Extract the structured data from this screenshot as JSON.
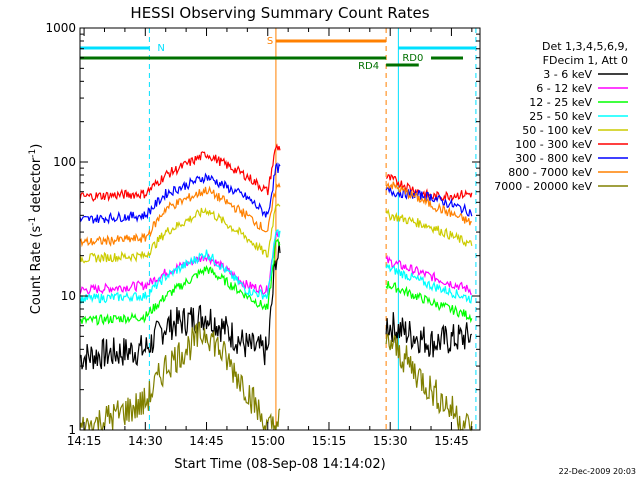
{
  "chart_data": {
    "type": "line",
    "title": "HESSI Observing Summary Count Rates",
    "xlabel": "Start Time (08-Sep-08 14:14:02)",
    "ylabel_prefix": "Count Rate (s",
    "ylabel_sup1": "-1",
    "ylabel_mid": " detector",
    "ylabel_sup2": "-1",
    "ylabel_suffix": ")",
    "yscale": "log",
    "xlim": [
      "14:14",
      "15:52"
    ],
    "ylim": [
      1,
      1000
    ],
    "x_ticks": [
      "14:15",
      "14:30",
      "14:45",
      "15:00",
      "15:15",
      "15:30",
      "15:45"
    ],
    "y_ticks": [
      {
        "value": 1,
        "label": "1"
      },
      {
        "value": 10,
        "label": "10"
      },
      {
        "value": 100,
        "label": "100"
      },
      {
        "value": 1000,
        "label": "1000"
      }
    ],
    "legend_header": [
      "Det 1,3,4,5,6,9,",
      "FDecim 1, Att 0"
    ],
    "legend_placement": "right",
    "series": [
      {
        "name": "3 - 6 keV",
        "color": "#000000",
        "points": [
          [
            "14:14",
            3.5
          ],
          [
            "14:30",
            4.0
          ],
          [
            "14:35",
            6
          ],
          [
            "14:45",
            7.2
          ],
          [
            "14:55",
            4.2
          ],
          [
            "15:00",
            3.8
          ],
          [
            "15:02",
            20
          ],
          [
            "15:30",
            6
          ],
          [
            "15:40",
            4.5
          ],
          [
            "15:50",
            5
          ]
        ]
      },
      {
        "name": "6 - 12 keV",
        "color": "#ff00ff",
        "points": [
          [
            "14:14",
            11
          ],
          [
            "14:30",
            12
          ],
          [
            "14:35",
            15
          ],
          [
            "14:45",
            20
          ],
          [
            "14:55",
            12
          ],
          [
            "15:00",
            11
          ],
          [
            "15:02",
            30
          ],
          [
            "15:30",
            18
          ],
          [
            "15:40",
            14
          ],
          [
            "15:50",
            11
          ]
        ]
      },
      {
        "name": "12 - 25 keV",
        "color": "#00ff00",
        "points": [
          [
            "14:14",
            6.5
          ],
          [
            "14:30",
            7
          ],
          [
            "14:35",
            10
          ],
          [
            "14:45",
            16
          ],
          [
            "14:55",
            10
          ],
          [
            "15:00",
            8
          ],
          [
            "15:02",
            25
          ],
          [
            "15:30",
            12
          ],
          [
            "15:40",
            9
          ],
          [
            "15:50",
            7
          ]
        ]
      },
      {
        "name": "25 - 50 keV",
        "color": "#00ffff",
        "points": [
          [
            "14:14",
            9.5
          ],
          [
            "14:30",
            10
          ],
          [
            "14:35",
            14
          ],
          [
            "14:45",
            21
          ],
          [
            "14:55",
            11
          ],
          [
            "15:00",
            10
          ],
          [
            "15:02",
            30
          ],
          [
            "15:30",
            16
          ],
          [
            "15:40",
            12
          ],
          [
            "15:50",
            9.5
          ]
        ]
      },
      {
        "name": "50 - 100 keV",
        "color": "#cccc00",
        "points": [
          [
            "14:14",
            19
          ],
          [
            "14:30",
            20
          ],
          [
            "14:35",
            30
          ],
          [
            "14:45",
            44
          ],
          [
            "14:55",
            27
          ],
          [
            "15:00",
            20
          ],
          [
            "15:02",
            50
          ],
          [
            "15:30",
            40
          ],
          [
            "15:40",
            33
          ],
          [
            "15:50",
            24
          ]
        ]
      },
      {
        "name": "100 - 300 keV",
        "color": "#ff0000",
        "points": [
          [
            "14:14",
            55
          ],
          [
            "14:30",
            58
          ],
          [
            "14:35",
            80
          ],
          [
            "14:45",
            115
          ],
          [
            "14:55",
            78
          ],
          [
            "15:00",
            60
          ],
          [
            "15:02",
            130
          ],
          [
            "15:30",
            75
          ],
          [
            "15:40",
            55
          ],
          [
            "15:50",
            58
          ]
        ]
      },
      {
        "name": "300 - 800 keV",
        "color": "#0000ff",
        "points": [
          [
            "14:14",
            37
          ],
          [
            "14:30",
            40
          ],
          [
            "14:35",
            58
          ],
          [
            "14:45",
            78
          ],
          [
            "14:55",
            54
          ],
          [
            "15:00",
            40
          ],
          [
            "15:02",
            90
          ],
          [
            "15:30",
            60
          ],
          [
            "15:40",
            55
          ],
          [
            "15:50",
            42
          ]
        ]
      },
      {
        "name": "800 - 7000 keV",
        "color": "#ff8000",
        "points": [
          [
            "14:14",
            25
          ],
          [
            "14:30",
            27
          ],
          [
            "14:35",
            45
          ],
          [
            "14:45",
            62
          ],
          [
            "14:55",
            40
          ],
          [
            "15:00",
            30
          ],
          [
            "15:02",
            65
          ],
          [
            "15:30",
            68
          ],
          [
            "15:40",
            48
          ],
          [
            "15:50",
            35
          ]
        ]
      },
      {
        "name": "7000 - 20000 keV",
        "color": "#808000",
        "points": [
          [
            "14:14",
            1
          ],
          [
            "14:30",
            1.6
          ],
          [
            "14:35",
            3
          ],
          [
            "14:45",
            5.5
          ],
          [
            "14:55",
            2
          ],
          [
            "15:00",
            1
          ],
          [
            "15:30",
            4.5
          ],
          [
            "15:40",
            2
          ],
          [
            "15:50",
            1
          ]
        ]
      }
    ],
    "markers": {
      "night_label": "N",
      "saa_label": "S",
      "decim_labels": [
        "RD0",
        "RD4"
      ],
      "cyan_vlines": [
        "14:14",
        "14:31",
        "15:32",
        "15:51"
      ],
      "orange_vlines": [
        "15:02",
        "15:29"
      ]
    }
  },
  "footer": {
    "date": "22-Dec-2009 20:03"
  }
}
